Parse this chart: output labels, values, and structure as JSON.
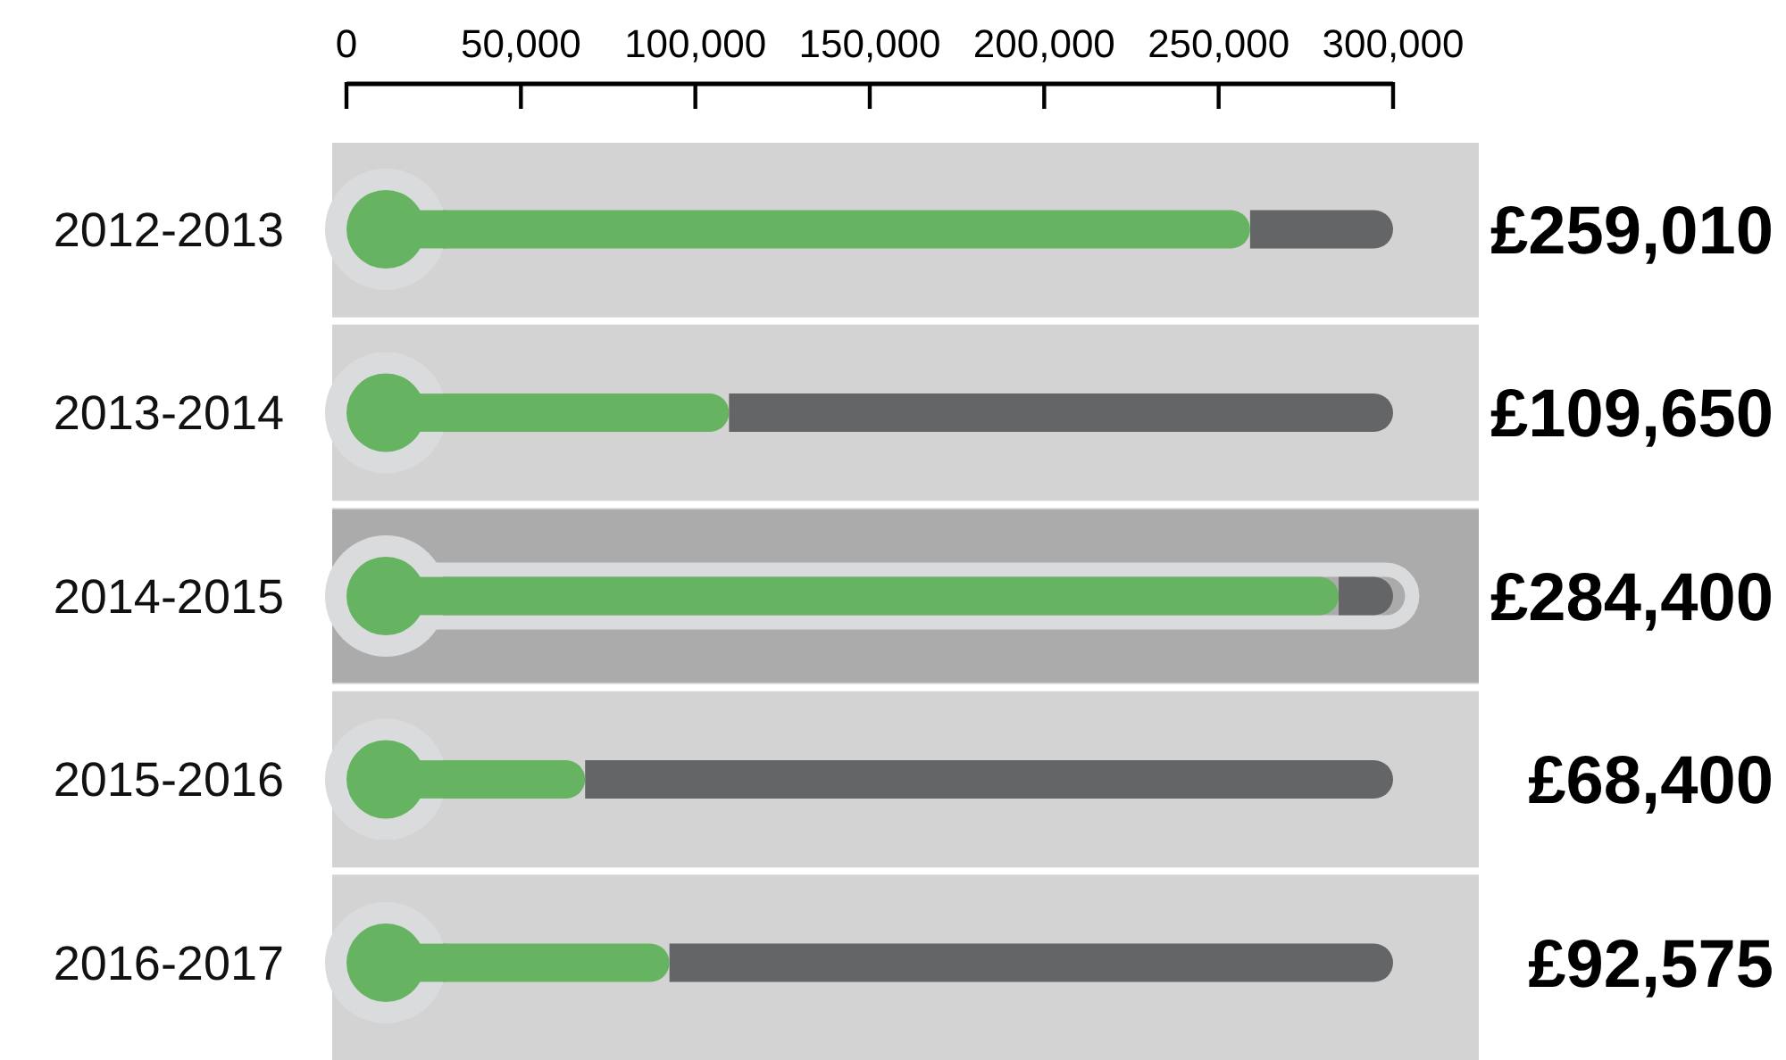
{
  "chart_data": {
    "type": "bar",
    "orientation": "horizontal",
    "stacked": true,
    "categories": [
      "2012-2013",
      "2013-2014",
      "2014-2015",
      "2015-2016",
      "2016-2017"
    ],
    "series": [
      {
        "color": "#66b462",
        "values": [
          259010,
          109650,
          284400,
          68400,
          92575
        ],
        "value_labels": [
          "£259,010",
          "£109,650",
          "£284,400",
          "£68,400",
          "£92,575"
        ]
      },
      {
        "color": "#646567",
        "values": [
          40990,
          190350,
          15600,
          231600,
          207425
        ]
      }
    ],
    "xlim": [
      0,
      300000
    ],
    "xticks": [
      0,
      {
        "value": 50000,
        "label": "50,000"
      },
      {
        "value": 100000,
        "label": "100,000"
      },
      {
        "value": 150000,
        "label": "150,000"
      },
      {
        "value": 200000,
        "label": "200,000"
      },
      {
        "value": 250000,
        "label": "250,000"
      },
      {
        "value": 300000,
        "label": "300,000"
      }
    ],
    "bands": [
      {
        "axis": "y",
        "from": "2014-2015",
        "to": "2014-2015",
        "color": "#ababab"
      }
    ]
  }
}
